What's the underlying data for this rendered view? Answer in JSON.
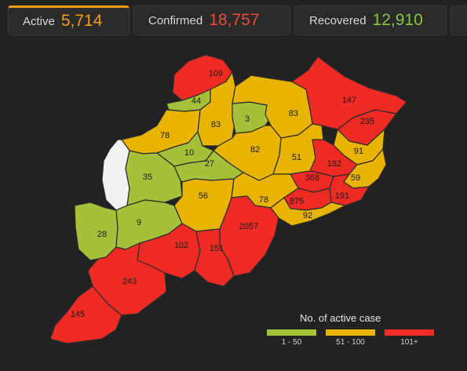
{
  "tabs": [
    {
      "label": "Active",
      "value": "5,714",
      "color": "#f39c12"
    },
    {
      "label": "Confirmed",
      "value": "18,757",
      "color": "#e74c3c"
    },
    {
      "label": "Recovered",
      "value": "12,910",
      "color": "#8bc34a"
    }
  ],
  "colors": {
    "low": "#a4c139",
    "mid": "#e8b400",
    "high": "#f02b24",
    "nodata": "#f2f2f2",
    "border": "#2b2b2b"
  },
  "districts": {
    "d109": "109",
    "d44": "44",
    "d3": "3",
    "d83a": "83",
    "d83b": "83",
    "d147": "147",
    "d235": "235",
    "d78a": "78",
    "d10": "10",
    "d82": "82",
    "d91": "91",
    "d51": "51",
    "d182": "182",
    "d35": "35",
    "d27": "27",
    "d368": "368",
    "d59": "59",
    "d191": "191",
    "d56": "56",
    "d78b": "78",
    "d875": "875",
    "d92": "92",
    "d28": "28",
    "d9": "9",
    "d2057": "2057",
    "d102": "102",
    "d151": "151",
    "d243": "243",
    "d145": "145"
  },
  "legend": {
    "title": "No. of active case",
    "items": [
      {
        "label": "1 - 50",
        "color": "#a4c139"
      },
      {
        "label": "51 - 100",
        "color": "#e8b400"
      },
      {
        "label": "101+",
        "color": "#f02b24"
      }
    ]
  }
}
